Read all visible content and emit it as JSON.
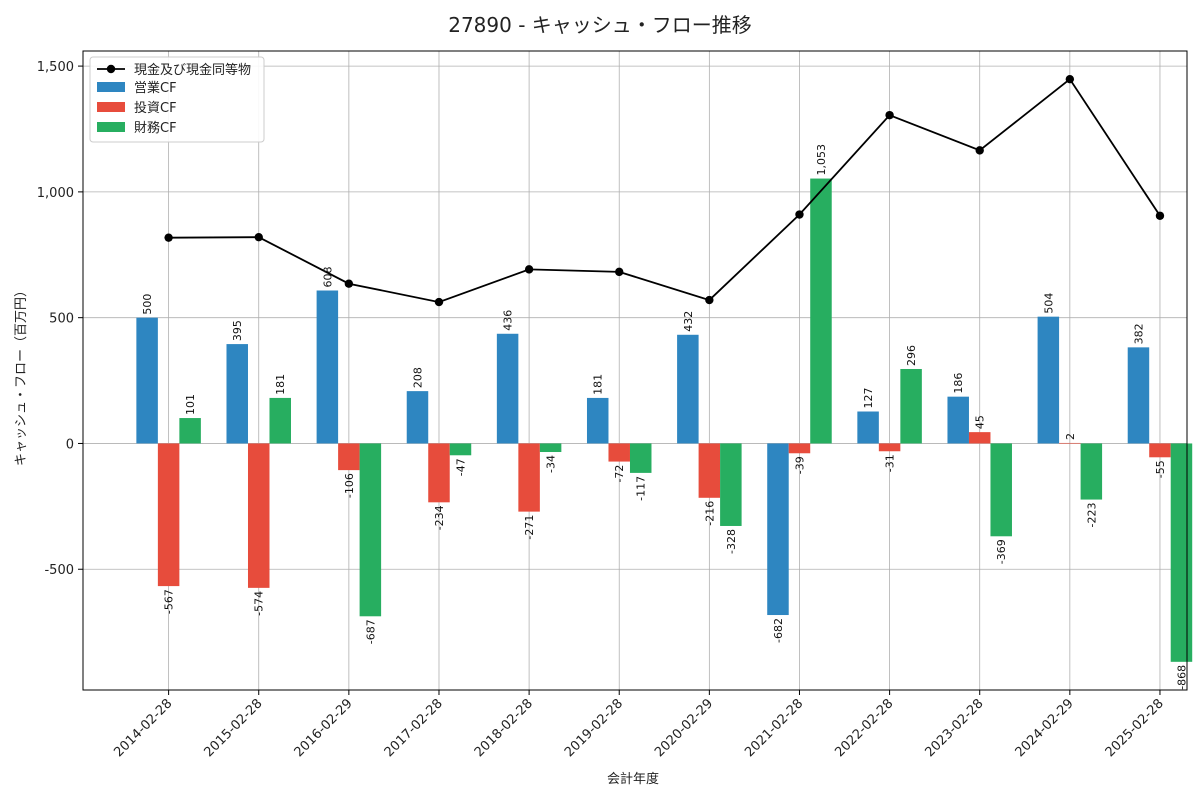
{
  "chart_data": {
    "type": "bar",
    "title": "27890 - キャッシュ・フロー推移",
    "xlabel": "会計年度",
    "ylabel": "キャッシュ・フロー（百万円）",
    "categories": [
      "2014-02-28",
      "2015-02-28",
      "2016-02-29",
      "2017-02-28",
      "2018-02-28",
      "2019-02-28",
      "2020-02-29",
      "2021-02-28",
      "2022-02-28",
      "2023-02-28",
      "2024-02-29",
      "2025-02-28"
    ],
    "series": [
      {
        "name": "営業CF",
        "kind": "bar",
        "color": "#2e86c1",
        "values": [
          500,
          395,
          608,
          208,
          436,
          181,
          432,
          -682,
          127,
          186,
          504,
          382
        ]
      },
      {
        "name": "投資CF",
        "kind": "bar",
        "color": "#e74c3c",
        "values": [
          -567,
          -574,
          -106,
          -234,
          -271,
          -72,
          -216,
          -39,
          -31,
          45,
          2,
          -55
        ]
      },
      {
        "name": "財務CF",
        "kind": "bar",
        "color": "#27ae60",
        "values": [
          101,
          181,
          -687,
          -47,
          -34,
          -117,
          -328,
          1053,
          296,
          -369,
          -223,
          -868
        ]
      }
    ],
    "line": {
      "name": "現金及び現金同等物",
      "color": "#000000",
      "values": [
        818,
        820,
        635,
        562,
        692,
        682,
        570,
        910,
        1305,
        1165,
        1448,
        905
      ]
    },
    "yticks": [
      -500,
      0,
      500,
      1000,
      1500
    ],
    "ytick_labels": [
      "-500",
      "0",
      "500",
      "1,000",
      "1,500"
    ],
    "ylim": [
      -980,
      1560
    ],
    "grid": true,
    "legend": "top-left"
  }
}
